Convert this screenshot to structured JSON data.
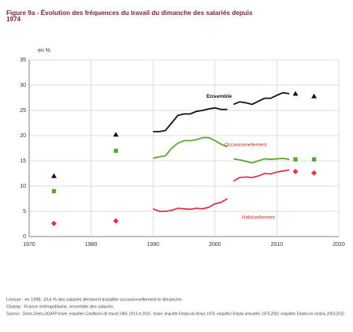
{
  "chart_data": {
    "type": "line",
    "title": "Figure 9a - Évolution des fréquences du travail du dimanche des salariés depuis 1974",
    "y_unit": "en %",
    "xlim": [
      1970,
      2020
    ],
    "xticks": [
      1970,
      1980,
      1990,
      2000,
      2010,
      2020
    ],
    "ylim": [
      0,
      35
    ],
    "yticks": [
      0,
      5,
      10,
      15,
      20,
      25,
      30,
      35
    ],
    "grid": true,
    "x_survey": [
      1974,
      1984,
      2013,
      2016
    ],
    "x_periods": [
      [
        1990,
        1991,
        1992,
        1993,
        1994,
        1995,
        1996,
        1997,
        1998,
        1999,
        2000,
        2001,
        2002
      ],
      [
        2003,
        2004,
        2005,
        2006,
        2007,
        2008,
        2009,
        2010,
        2011,
        2012
      ]
    ],
    "series": [
      {
        "name": "Ensemble",
        "color": "#111111",
        "marker": "triangle",
        "survey_values": [
          12,
          20.2,
          28.3,
          27.8
        ],
        "period_values": [
          [
            20.8,
            20.8,
            21,
            22.5,
            24,
            24.3,
            24.3,
            24.8,
            25,
            25.3,
            25.5,
            25.2,
            25.2
          ],
          [
            26.2,
            26.7,
            26.5,
            26.2,
            26.8,
            27.4,
            27.4,
            28,
            28.5,
            28.3
          ]
        ]
      },
      {
        "name": "Occasionnellement",
        "color": "#5aa832",
        "marker": "square",
        "survey_values": [
          9,
          17,
          15.3,
          15.3
        ],
        "period_values": [
          [
            15.5,
            15.8,
            16,
            17.5,
            18.5,
            19,
            19,
            19.2,
            19.6,
            19.6,
            19,
            18.3,
            17.8
          ],
          [
            15.4,
            15.2,
            14.9,
            14.6,
            15,
            15.4,
            15.3,
            15.4,
            15.5,
            15.3
          ]
        ]
      },
      {
        "name": "Habituellement",
        "color": "#e0334a",
        "marker": "diamond",
        "survey_values": [
          2.6,
          3.1,
          12.9,
          12.6
        ],
        "period_values": [
          [
            5.5,
            5,
            5,
            5.2,
            5.6,
            5.5,
            5.4,
            5.6,
            5.5,
            5.8,
            6.5,
            6.8,
            7.5
          ],
          [
            11,
            11.7,
            11.8,
            11.7,
            12,
            12.5,
            12.4,
            12.8,
            13,
            13.2
          ]
        ]
      }
    ],
    "notes": [
      "Lecture : en 1999, 19,6 % des salariés déclarent travailler occasionnellement le dimanche.",
      "Champ : France métropolitaine, ensemble des salariés.",
      "Sources : Dares-Drees-DGAFP-Insee, enquêtes Conditions de travail 1984, 2013 et 2016 ; Insee, enquête Emploi du temps 1974, enquêtes Emploi annuelles 1975-2002, enquêtes Emploi en continu 2003-2012."
    ]
  }
}
